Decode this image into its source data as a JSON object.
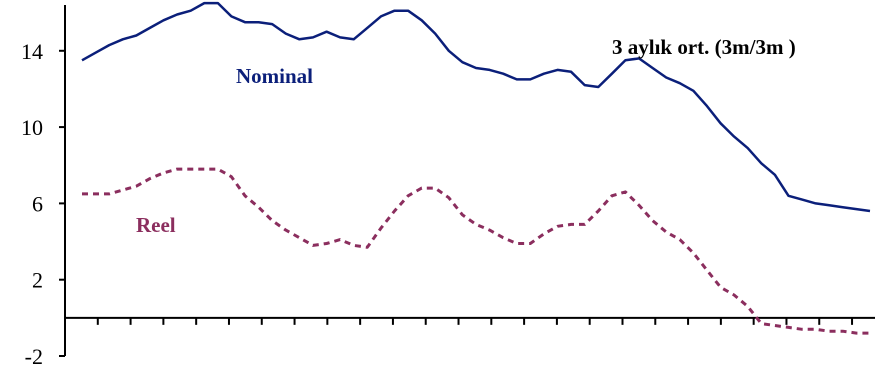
{
  "chart_data": {
    "type": "line",
    "title": "",
    "xlabel": "",
    "ylabel": "",
    "ylim": [
      -2,
      16.4
    ],
    "y_ticks": [
      -2,
      2,
      6,
      10,
      14
    ],
    "x_tick_count": 24,
    "grid": false,
    "annotation": "3 aylık ort. (3m/3m )",
    "x": [
      0,
      1,
      2,
      3,
      4,
      5,
      6,
      7,
      8,
      9,
      10,
      11,
      12,
      13,
      14,
      15,
      16,
      17,
      18,
      19,
      20,
      21,
      22,
      23,
      24,
      25,
      26,
      27,
      28,
      29,
      30,
      31,
      32,
      33,
      34,
      35,
      36,
      37,
      38,
      39,
      40,
      41,
      42,
      43,
      44,
      45,
      46,
      47,
      48,
      49,
      50,
      51,
      52,
      53,
      54,
      55,
      56,
      57,
      58
    ],
    "series": [
      {
        "name": "Nominal",
        "color": "#0b1f7a",
        "style": "solid",
        "values": [
          13.5,
          13.9,
          14.3,
          14.6,
          14.8,
          15.2,
          15.6,
          15.9,
          16.1,
          16.5,
          16.5,
          15.8,
          15.5,
          15.5,
          15.4,
          14.9,
          14.6,
          14.7,
          15.0,
          14.7,
          14.6,
          15.2,
          15.8,
          16.1,
          16.1,
          15.6,
          14.9,
          14.0,
          13.4,
          13.1,
          13.0,
          12.8,
          12.5,
          12.5,
          12.8,
          13.0,
          12.9,
          12.2,
          12.1,
          12.8,
          13.5,
          13.6,
          13.1,
          12.6,
          12.3,
          11.9,
          11.1,
          10.2,
          9.5,
          8.9,
          8.1,
          7.5,
          6.4,
          6.2,
          6.0,
          5.9,
          5.8,
          5.7,
          5.6
        ]
      },
      {
        "name": "Reel",
        "color": "#8b2e5e",
        "style": "dashed",
        "values": [
          6.5,
          6.5,
          6.5,
          6.7,
          6.9,
          7.3,
          7.6,
          7.8,
          7.8,
          7.8,
          7.8,
          7.4,
          6.4,
          5.8,
          5.1,
          4.6,
          4.2,
          3.8,
          3.9,
          4.1,
          3.8,
          3.7,
          4.7,
          5.6,
          6.4,
          6.8,
          6.8,
          6.3,
          5.4,
          4.9,
          4.6,
          4.2,
          3.9,
          3.9,
          4.4,
          4.8,
          4.9,
          4.9,
          5.6,
          6.4,
          6.6,
          5.9,
          5.1,
          4.5,
          4.1,
          3.4,
          2.5,
          1.6,
          1.2,
          0.6,
          -0.3,
          -0.4,
          -0.5,
          -0.6,
          -0.6,
          -0.7,
          -0.7,
          -0.8,
          -0.8
        ]
      }
    ]
  }
}
